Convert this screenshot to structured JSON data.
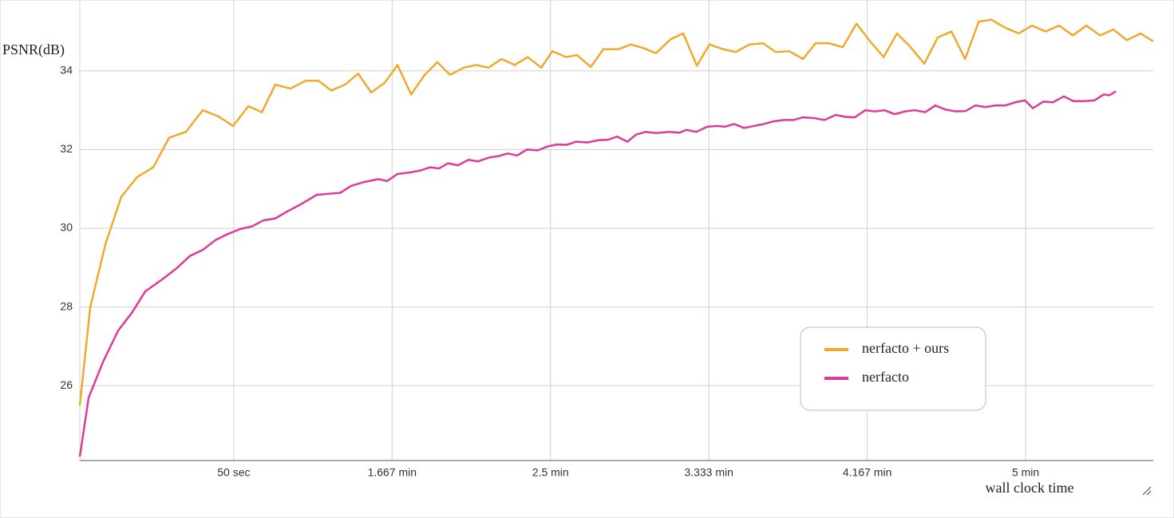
{
  "chart_data": {
    "type": "line",
    "ylabel": "PSNR(dB)",
    "xlabel": "wall clock time",
    "xlim": [
      1.4,
      340.3
    ],
    "ylim": [
      24.1,
      35.8
    ],
    "xticks": [
      {
        "value": 50,
        "label": "50 sec"
      },
      {
        "value": 100,
        "label": "1.667 min"
      },
      {
        "value": 150,
        "label": "2.5 min"
      },
      {
        "value": 200,
        "label": "3.333 min"
      },
      {
        "value": 250,
        "label": "4.167 min"
      },
      {
        "value": 300,
        "label": "5 min"
      }
    ],
    "yticks": [
      26,
      28,
      30,
      32,
      34
    ],
    "grid": true,
    "legend": "lower right",
    "series": [
      {
        "name": "nerfacto + ours",
        "color": "#f0a92c",
        "x": [
          1.4,
          4.7,
          9.5,
          14.5,
          19.5,
          24.6,
          29.6,
          34.9,
          40.2,
          45,
          49.8,
          54.6,
          58.9,
          63.1,
          67.9,
          72.7,
          76.7,
          80.8,
          85.1,
          89.3,
          93.4,
          97.7,
          101.7,
          106,
          110.3,
          114.3,
          118.3,
          122.6,
          126.6,
          130.4,
          134.5,
          138.7,
          142.8,
          147.1,
          150.6,
          154.9,
          158.4,
          162.7,
          166.7,
          171.5,
          175.3,
          179.3,
          183.3,
          187.9,
          191.9,
          196.2,
          200.2,
          204.5,
          208.5,
          212.8,
          217.1,
          221.1,
          225.4,
          229.7,
          233.7,
          238,
          242.3,
          246.6,
          250.9,
          255.2,
          259.4,
          263.7,
          268,
          272.3,
          276.6,
          280.9,
          285.2,
          289.2,
          293.5,
          297.8,
          302,
          306.3,
          310.6,
          314.9,
          319.2,
          323.5,
          327.7,
          332,
          336.3,
          340.3
        ],
        "values": [
          25.5,
          28,
          29.6,
          30.8,
          31.3,
          31.55,
          32.3,
          32.45,
          33,
          32.85,
          32.6,
          33.1,
          32.95,
          33.65,
          33.55,
          33.75,
          33.75,
          33.5,
          33.65,
          33.93,
          33.45,
          33.7,
          34.15,
          33.4,
          33.9,
          34.22,
          33.9,
          34.08,
          34.15,
          34.08,
          34.3,
          34.15,
          34.35,
          34.08,
          34.5,
          34.35,
          34.4,
          34.1,
          34.55,
          34.55,
          34.67,
          34.58,
          34.45,
          34.8,
          34.95,
          34.13,
          34.67,
          34.55,
          34.48,
          34.67,
          34.7,
          34.48,
          34.5,
          34.3,
          34.7,
          34.7,
          34.6,
          35.2,
          34.75,
          34.35,
          34.95,
          34.6,
          34.18,
          34.85,
          35,
          34.3,
          35.25,
          35.3,
          35.1,
          34.95,
          35.15,
          35,
          35.15,
          34.9,
          35.15,
          34.9,
          35.05,
          34.78,
          34.95,
          34.75
        ]
      },
      {
        "name": "nerfacto",
        "color": "#dd3a9a",
        "x": [
          1.4,
          4.2,
          8.7,
          13.5,
          17.8,
          22.1,
          27.4,
          32.2,
          36.2,
          40.2,
          44.2,
          48,
          52,
          55.8,
          59.3,
          63.1,
          67.4,
          71.4,
          76.2,
          80.3,
          83.6,
          87.1,
          91.4,
          95.7,
          98.4,
          101.7,
          105.8,
          109,
          112,
          114.8,
          117.6,
          120.8,
          124.1,
          127.1,
          130.7,
          133.4,
          136.5,
          139.5,
          142.5,
          146,
          149.1,
          152.1,
          155.1,
          158.1,
          161.7,
          165.2,
          168.2,
          171,
          174.3,
          177,
          180.1,
          183.3,
          187.4,
          190.7,
          192.9,
          196,
          199.5,
          202.5,
          205,
          208,
          211.1,
          214.3,
          217.4,
          220.6,
          223.7,
          226.7,
          229.7,
          233.2,
          236.5,
          240,
          243.3,
          246.1,
          249.4,
          252.4,
          255.4,
          258.7,
          262,
          265,
          268.3,
          271.5,
          274.6,
          277.8,
          281.1,
          284.1,
          287.4,
          290.4,
          293.5,
          296.7,
          299.8,
          302.3,
          305.6,
          308.6,
          312.1,
          315.1,
          318.4,
          321.7,
          324.7,
          326.5,
          328.5
        ],
        "values": [
          24.2,
          25.7,
          26.6,
          27.4,
          27.85,
          28.4,
          28.7,
          29,
          29.3,
          29.45,
          29.7,
          29.85,
          29.98,
          30.05,
          30.2,
          30.25,
          30.45,
          30.62,
          30.85,
          30.88,
          30.9,
          31.08,
          31.18,
          31.25,
          31.2,
          31.38,
          31.42,
          31.47,
          31.55,
          31.52,
          31.65,
          31.6,
          31.74,
          31.7,
          31.8,
          31.83,
          31.9,
          31.85,
          32,
          31.98,
          32.08,
          32.13,
          32.12,
          32.2,
          32.18,
          32.24,
          32.25,
          32.33,
          32.2,
          32.38,
          32.45,
          32.42,
          32.45,
          32.43,
          32.5,
          32.45,
          32.58,
          32.6,
          32.58,
          32.65,
          32.55,
          32.6,
          32.65,
          32.72,
          32.75,
          32.75,
          32.82,
          32.8,
          32.75,
          32.88,
          32.83,
          32.82,
          33,
          32.97,
          33,
          32.9,
          32.97,
          33,
          32.95,
          33.12,
          33.02,
          32.97,
          32.98,
          33.12,
          33.08,
          33.12,
          33.12,
          33.2,
          33.25,
          33.05,
          33.22,
          33.2,
          33.35,
          33.23,
          33.23,
          33.25,
          33.4,
          33.38,
          33.48
        ]
      }
    ]
  }
}
